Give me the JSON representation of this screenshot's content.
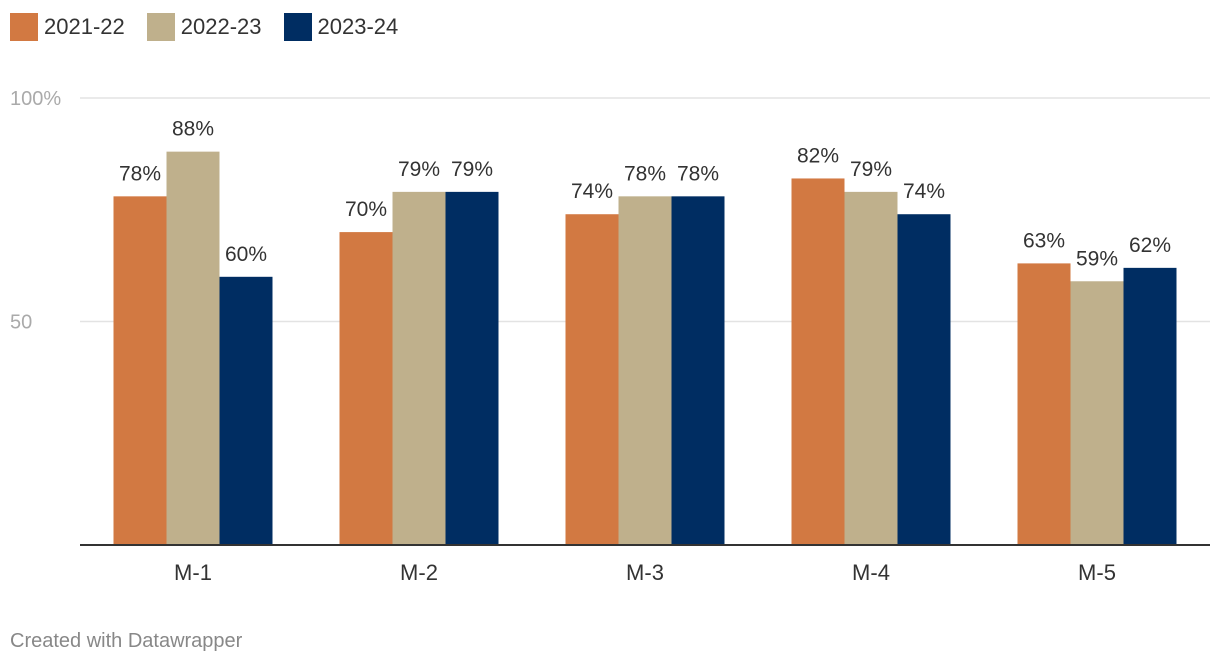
{
  "chart_data": {
    "type": "bar",
    "categories": [
      "M-1",
      "M-2",
      "M-3",
      "M-4",
      "M-5"
    ],
    "series": [
      {
        "name": "2021-22",
        "values": [
          78,
          70,
          74,
          82,
          63
        ],
        "labels": [
          "78%",
          "70%",
          "74%",
          "82%",
          "63%"
        ],
        "color": "#d27942"
      },
      {
        "name": "2022-23",
        "values": [
          88,
          79,
          78,
          79,
          59
        ],
        "labels": [
          "88%",
          "79%",
          "78%",
          "79%",
          "59%"
        ],
        "color": "#bfb08c"
      },
      {
        "name": "2023-24",
        "values": [
          60,
          79,
          78,
          74,
          62
        ],
        "labels": [
          "60%",
          "79%",
          "78%",
          "74%",
          "62%"
        ],
        "color": "#002d62"
      }
    ],
    "ylim": [
      0,
      100
    ],
    "yticks": [
      {
        "value": 100,
        "label": "100%"
      },
      {
        "value": 50,
        "label": "50"
      }
    ],
    "grid": true,
    "legend_position": "top-left"
  },
  "footer": {
    "credit": "Created with Datawrapper"
  }
}
